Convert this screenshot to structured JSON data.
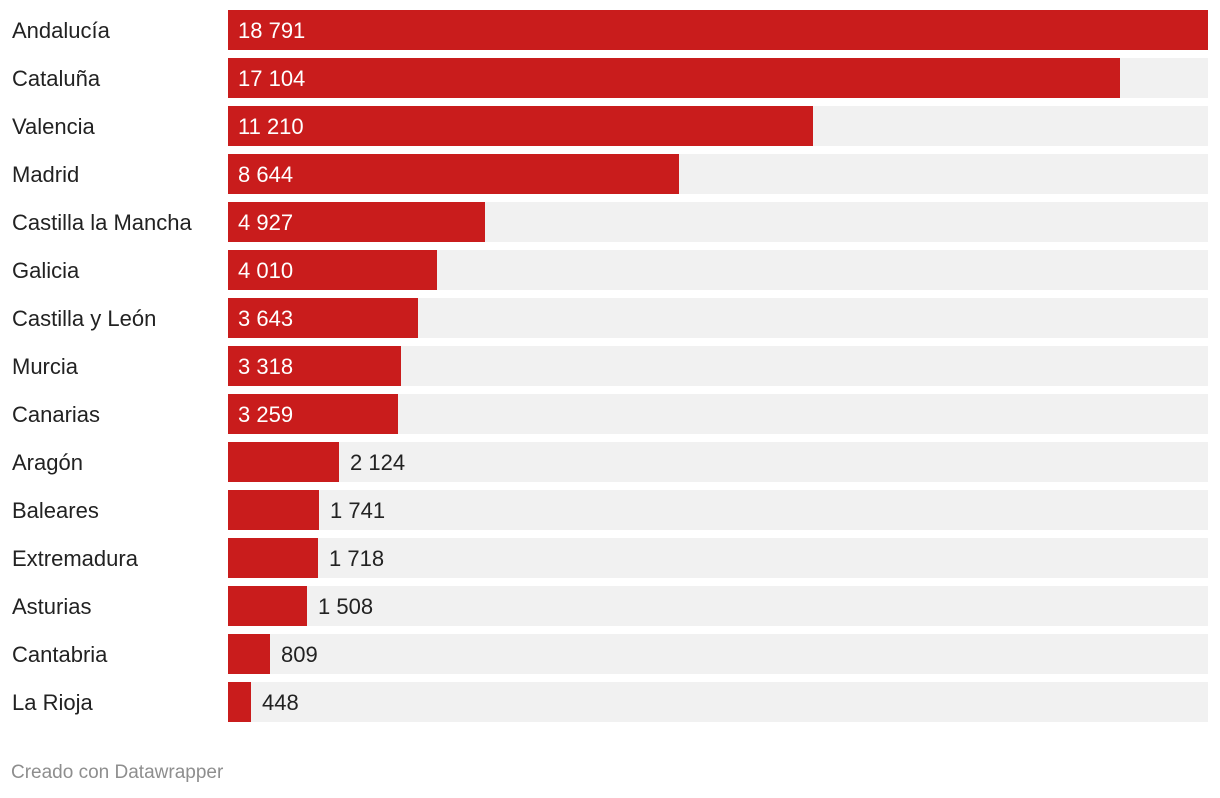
{
  "chart_data": {
    "type": "bar",
    "orientation": "horizontal",
    "title": "",
    "xlabel": "",
    "ylabel": "",
    "xlim": [
      0,
      18791
    ],
    "grid": false,
    "legend": "none",
    "colors": {
      "bar": "#c91c1c",
      "track": "#f1f1f1"
    },
    "categories": [
      "Andalucía",
      "Cataluña",
      "Valencia",
      "Madrid",
      "Castilla la Mancha",
      "Galicia",
      "Castilla y León",
      "Murcia",
      "Canarias",
      "Aragón",
      "Baleares",
      "Extremadura",
      "Asturias",
      "Cantabria",
      "La Rioja"
    ],
    "values": [
      18791,
      17104,
      11210,
      8644,
      4927,
      4010,
      3643,
      3318,
      3259,
      2124,
      1741,
      1718,
      1508,
      809,
      448
    ],
    "value_labels": [
      "18 791",
      "17 104",
      "11 210",
      "8 644",
      "4 927",
      "4 010",
      "3 643",
      "3 318",
      "3 259",
      "2 124",
      "1 741",
      "1 718",
      "1 508",
      "809",
      "448"
    ]
  },
  "footer": {
    "credit": "Creado con Datawrapper"
  }
}
